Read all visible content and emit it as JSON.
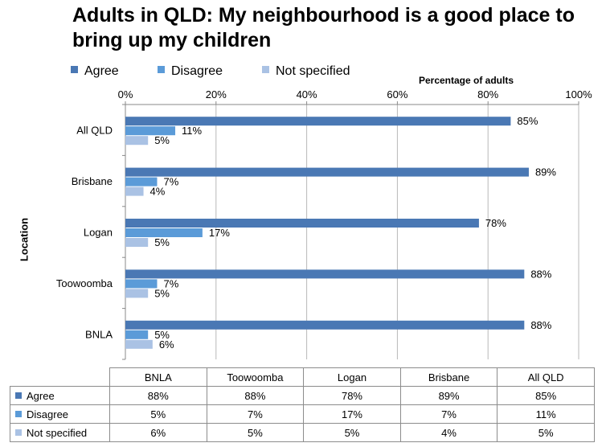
{
  "colors": {
    "agree": "#4a78b4",
    "disagree": "#5b9bd8",
    "not_specified": "#aac2e4",
    "grid": "#b8b8b8",
    "axis": "#888888"
  },
  "chart_data": {
    "type": "bar",
    "orientation": "horizontal",
    "title": "Adults in QLD: My neighbourhood is a good place to bring up my children",
    "xlabel": "Percentage of adults",
    "ylabel": "Location",
    "xlim": [
      0,
      100
    ],
    "xticks": [
      "0%",
      "20%",
      "40%",
      "60%",
      "80%",
      "100%"
    ],
    "categories": [
      "All QLD",
      "Brisbane",
      "Logan",
      "Toowoomba",
      "BNLA"
    ],
    "series": [
      {
        "name": "Agree",
        "values": [
          85,
          89,
          78,
          88,
          88
        ],
        "labels": [
          "85%",
          "89%",
          "78%",
          "88%",
          "88%"
        ]
      },
      {
        "name": "Disagree",
        "values": [
          11,
          7,
          17,
          7,
          5
        ],
        "labels": [
          "11%",
          "7%",
          "17%",
          "7%",
          "5%"
        ]
      },
      {
        "name": "Not specified",
        "values": [
          5,
          4,
          5,
          5,
          6
        ],
        "labels": [
          "5%",
          "4%",
          "5%",
          "5%",
          "6%"
        ]
      }
    ],
    "legend_position": "top-left",
    "grid": true,
    "data_table": {
      "columns": [
        "BNLA",
        "Toowoomba",
        "Logan",
        "Brisbane",
        "All QLD"
      ],
      "rows": [
        {
          "label": "Agree",
          "cells": [
            "88%",
            "88%",
            "78%",
            "89%",
            "85%"
          ]
        },
        {
          "label": "Disagree",
          "cells": [
            "5%",
            "7%",
            "17%",
            "7%",
            "11%"
          ]
        },
        {
          "label": "Not specified",
          "cells": [
            "6%",
            "5%",
            "5%",
            "4%",
            "5%"
          ]
        }
      ]
    }
  }
}
